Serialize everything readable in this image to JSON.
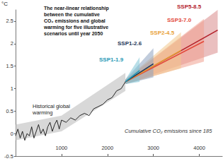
{
  "chart_data": {
    "type": "line",
    "y_label": "°C",
    "x_label": "Cumulative CO₂ emissions since 185",
    "annotations": [
      {
        "text": "The near-linear relationship\nbetween the cumulative\nCO₂ emissions and global\nwarming for five illustrative\nscenarios until year 2050"
      },
      {
        "text": "Historical global\nwarming"
      }
    ],
    "xlim": [
      0,
      4500
    ],
    "xticks": [
      1000,
      2000,
      3000,
      4000
    ],
    "ylim": [
      -0.5,
      2.75
    ],
    "yticks": [
      -0.5,
      0,
      0.5,
      1,
      1.5,
      2,
      2.5
    ],
    "grid": false,
    "series": [
      {
        "color": "#111111",
        "line_style": "solid",
        "x": [
          0,
          50,
          100,
          150,
          200,
          250,
          300,
          350,
          400,
          450,
          500,
          550,
          600,
          650,
          700,
          750,
          800,
          850,
          900,
          950,
          1000,
          1100,
          1200,
          1300,
          1400,
          1500,
          1600,
          1700,
          1800,
          1900,
          2000,
          2100,
          2200,
          2300,
          2390
        ],
        "values": [
          -0.05,
          0.1,
          -0.1,
          0.05,
          -0.15,
          0.0,
          -0.05,
          0.15,
          -0.1,
          0.05,
          0.2,
          0.0,
          0.1,
          -0.05,
          0.15,
          0.25,
          0.05,
          0.2,
          0.3,
          0.1,
          0.3,
          0.25,
          0.35,
          0.3,
          0.4,
          0.45,
          0.4,
          0.55,
          0.6,
          0.65,
          0.75,
          0.8,
          0.95,
          1.0,
          1.15
        ],
        "band": {
          "x": [
            0,
            1000,
            2390
          ],
          "lower": [
            -0.15,
            0.05,
            0.95
          ],
          "upper": [
            0.2,
            0.4,
            1.35
          ],
          "color": "#b8b8b8"
        }
      },
      {
        "name": "SSP5-8.5",
        "color": "#b3202a",
        "line_style": "solid",
        "x": [
          2390,
          4400
        ],
        "values": [
          1.15,
          2.3
        ],
        "band": {
          "x": [
            2390,
            4400
          ],
          "lower": [
            1.1,
            1.8
          ],
          "upper": [
            1.2,
            2.85
          ],
          "color": "#d98a8a"
        }
      },
      {
        "name": "SSP3-7.0",
        "color": "#e2483a",
        "line_style": "solid",
        "x": [
          2390,
          4100
        ],
        "values": [
          1.15,
          2.05
        ],
        "band": {
          "x": [
            2390,
            4100
          ],
          "lower": [
            1.1,
            1.6
          ],
          "upper": [
            1.2,
            2.55
          ],
          "color": "#f0a08f"
        }
      },
      {
        "name": "SSP2-4.5",
        "color": "#e8a035",
        "line_style": "solid",
        "x": [
          2390,
          3600
        ],
        "values": [
          1.15,
          1.85
        ],
        "band": {
          "x": [
            2390,
            3600
          ],
          "lower": [
            1.1,
            1.45
          ],
          "upper": [
            1.2,
            2.25
          ],
          "color": "#f2c98c"
        }
      },
      {
        "name": "SSP1-2.6",
        "color": "#1d3557",
        "line_style": "solid",
        "x": [
          2390,
          3000
        ],
        "values": [
          1.15,
          1.55
        ],
        "band": {
          "x": [
            2390,
            3000
          ],
          "lower": [
            1.1,
            1.25
          ],
          "upper": [
            1.2,
            1.9
          ],
          "color": "#8ea3c0"
        }
      },
      {
        "name": "SSP1-1.9",
        "color": "#1f97b5",
        "line_style": "solid",
        "x": [
          2390,
          2700
        ],
        "values": [
          1.15,
          1.4
        ],
        "band": {
          "x": [
            2390,
            2700
          ],
          "lower": [
            1.1,
            1.15
          ],
          "upper": [
            1.2,
            1.7
          ],
          "color": "#7fc4d6"
        }
      }
    ]
  }
}
